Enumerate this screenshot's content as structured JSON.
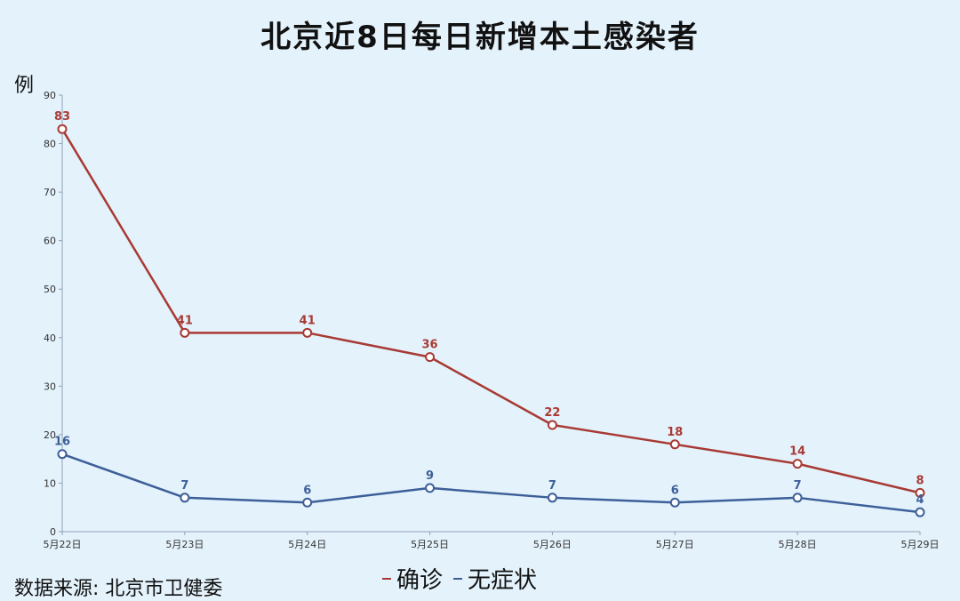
{
  "title": "北京近8日每日新增本土感染者",
  "unit_label": "例",
  "source": "数据来源: 北京市卫健委",
  "chart_data": {
    "type": "line",
    "categories": [
      "5月22日",
      "5月23日",
      "5月24日",
      "5月25日",
      "5月26日",
      "5月27日",
      "5月28日",
      "5月29日"
    ],
    "ylim": [
      0,
      90
    ],
    "yticks": [
      0,
      10,
      20,
      30,
      40,
      50,
      60,
      70,
      80,
      90
    ],
    "ylabel": "例",
    "legend_position": "bottom",
    "series": [
      {
        "name": "确诊",
        "color": "#a83a34",
        "values": [
          83,
          41,
          41,
          36,
          22,
          18,
          14,
          8
        ]
      },
      {
        "name": "无症状",
        "color": "#3d5f99",
        "values": [
          16,
          7,
          6,
          9,
          7,
          6,
          7,
          4
        ]
      }
    ]
  }
}
